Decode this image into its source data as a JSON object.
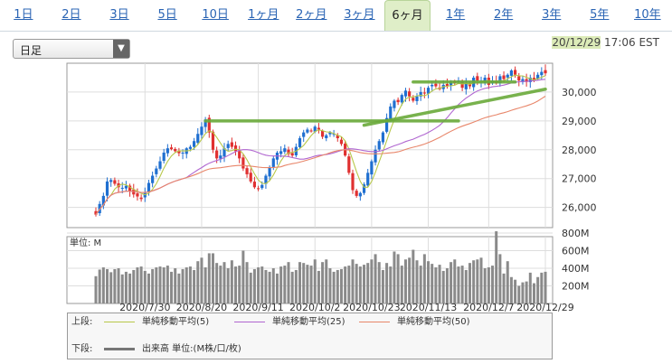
{
  "tabs": [
    {
      "label": "1日",
      "active": false
    },
    {
      "label": "2日",
      "active": false
    },
    {
      "label": "3日",
      "active": false
    },
    {
      "label": "5日",
      "active": false
    },
    {
      "label": "10日",
      "active": false
    },
    {
      "label": "1ヶ月",
      "active": false
    },
    {
      "label": "2ヶ月",
      "active": false
    },
    {
      "label": "3ヶ月",
      "active": false
    },
    {
      "label": "6ヶ月",
      "active": true
    },
    {
      "label": "1年",
      "active": false
    },
    {
      "label": "2年",
      "active": false
    },
    {
      "label": "3年",
      "active": false
    },
    {
      "label": "5年",
      "active": false
    },
    {
      "label": "10年",
      "active": false
    }
  ],
  "period_select": {
    "value": "日足",
    "arrow_icon": "triangle-down"
  },
  "timestamp": {
    "date": "20/12/29",
    "time": "17:06",
    "zone": "EST"
  },
  "legend": {
    "upper_label": "上段:",
    "lower_label": "下段:",
    "items": [
      {
        "label": "単純移動平均(5)",
        "color": "#b8c84a"
      },
      {
        "label": "単純移動平均(25)",
        "color": "#b066d0"
      },
      {
        "label": "単純移動平均(50)",
        "color": "#e8866a"
      }
    ],
    "volume_label": "出来高 単位:(M株/口/枚)"
  },
  "chart_data": {
    "type": "candlestick",
    "price_axis": {
      "ticks": [
        26000,
        27000,
        28000,
        29000,
        30000
      ],
      "tick_labels": [
        "26,000",
        "27,000",
        "28,000",
        "29,000",
        "30,000"
      ],
      "ylim": [
        25300,
        31000
      ]
    },
    "volume_axis": {
      "unit_label": "単位: M",
      "ticks": [
        200,
        400,
        600,
        800
      ],
      "tick_labels": [
        "200M",
        "400M",
        "600M",
        "800M"
      ],
      "ylim": [
        0,
        800
      ]
    },
    "date_labels": [
      "2020/7/30",
      "2020/8/20",
      "2020/9/11",
      "2020/10/2",
      "2020/10/23",
      "2020/11/13",
      "2020/12/7",
      "2020/12/29"
    ],
    "date_label_index": [
      13,
      28,
      43,
      58,
      73,
      88,
      104,
      119
    ],
    "grid": true,
    "colors": {
      "up": "#1f6fd0",
      "down": "#e03030",
      "volume": "#8a8a8a",
      "grid": "#dddddd",
      "annotation": "#6aaa3a"
    },
    "annotations": [
      {
        "type": "trendline",
        "from": [
          29,
          29000
        ],
        "to": [
          96,
          29000
        ]
      },
      {
        "type": "trendline",
        "from": [
          71,
          28850
        ],
        "to": [
          119,
          30100
        ]
      },
      {
        "type": "trendline",
        "from": [
          84,
          30350
        ],
        "to": [
          111,
          30350
        ]
      }
    ],
    "closes": [
      25750,
      26120,
      26400,
      26900,
      26950,
      26820,
      26700,
      26680,
      26750,
      26560,
      26450,
      26380,
      26290,
      26500,
      26850,
      27100,
      27350,
      27600,
      27900,
      28050,
      28020,
      27950,
      27880,
      27900,
      28050,
      28100,
      28300,
      28550,
      28800,
      29050,
      28600,
      28000,
      27700,
      27800,
      28050,
      28200,
      28100,
      27950,
      27700,
      27350,
      27150,
      26900,
      26700,
      26650,
      26780,
      27100,
      27400,
      27700,
      27900,
      27950,
      28050,
      27850,
      27800,
      28100,
      28400,
      28600,
      28700,
      28650,
      28800,
      28700,
      28450,
      28500,
      28600,
      28550,
      28400,
      28200,
      27800,
      27200,
      26600,
      26400,
      26500,
      26800,
      27200,
      27600,
      28000,
      28300,
      28600,
      29100,
      29500,
      29700,
      29650,
      29900,
      30050,
      29850,
      29700,
      29850,
      30000,
      29950,
      30150,
      30250,
      30200,
      30100,
      30250,
      30200,
      30350,
      30300,
      30400,
      30150,
      30300,
      30200,
      30500,
      30400,
      30350,
      30500,
      30250,
      30400,
      30300,
      30550,
      30450,
      30600,
      30750,
      30600,
      30400,
      30450,
      30350,
      30500,
      30400,
      30600,
      30700,
      30650
    ],
    "volumes": [
      310,
      385,
      410,
      390,
      355,
      390,
      400,
      330,
      360,
      340,
      380,
      410,
      420,
      370,
      340,
      390,
      410,
      420,
      410,
      430,
      360,
      400,
      340,
      390,
      410,
      420,
      380,
      480,
      520,
      410,
      570,
      570,
      460,
      430,
      470,
      400,
      490,
      420,
      430,
      600,
      470,
      350,
      390,
      410,
      420,
      380,
      360,
      400,
      340,
      420,
      430,
      470,
      360,
      380,
      470,
      460,
      440,
      430,
      500,
      370,
      470,
      500,
      400,
      360,
      380,
      390,
      420,
      430,
      500,
      450,
      420,
      440,
      460,
      500,
      560,
      470,
      380,
      460,
      420,
      590,
      560,
      430,
      500,
      520,
      610,
      490,
      430,
      560,
      480,
      450,
      410,
      440,
      370,
      400,
      470,
      500,
      420,
      430,
      380,
      460,
      490,
      500,
      520,
      400,
      410,
      430,
      820,
      560,
      340,
      480,
      300,
      270,
      200,
      240,
      250,
      350,
      230,
      300,
      350,
      360
    ]
  }
}
